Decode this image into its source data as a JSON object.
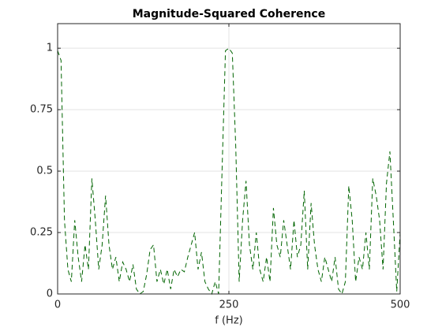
{
  "chart_data": {
    "type": "line",
    "title": "Magnitude-Squared Coherence",
    "x_label": "f (Hz)",
    "x": [
      0,
      5,
      10,
      15,
      20,
      25,
      30,
      35,
      40,
      45,
      50,
      55,
      60,
      65,
      70,
      75,
      80,
      85,
      90,
      95,
      100,
      105,
      110,
      115,
      120,
      125,
      130,
      135,
      140,
      145,
      150,
      155,
      160,
      165,
      170,
      175,
      180,
      185,
      190,
      195,
      200,
      205,
      210,
      215,
      220,
      225,
      230,
      235,
      240,
      245,
      250,
      255,
      260,
      265,
      270,
      275,
      280,
      285,
      290,
      295,
      300,
      305,
      310,
      315,
      320,
      325,
      330,
      335,
      340,
      345,
      350,
      355,
      360,
      365,
      370,
      375,
      380,
      385,
      390,
      395,
      400,
      405,
      410,
      415,
      420,
      425,
      430,
      435,
      440,
      445,
      450,
      455,
      460,
      465,
      470,
      475,
      480,
      485,
      490,
      495,
      500
    ],
    "series": [
      {
        "color": "#006400",
        "values": [
          0.99,
          0.95,
          0.3,
          0.1,
          0.05,
          0.3,
          0.15,
          0.05,
          0.2,
          0.1,
          0.47,
          0.3,
          0.1,
          0.2,
          0.4,
          0.2,
          0.1,
          0.15,
          0.05,
          0.13,
          0.1,
          0.05,
          0.12,
          0.02,
          0,
          0.01,
          0.08,
          0.18,
          0.2,
          0.05,
          0.1,
          0.04,
          0.1,
          0.02,
          0.1,
          0.07,
          0.1,
          0.09,
          0.15,
          0.2,
          0.25,
          0.1,
          0.17,
          0.05,
          0.02,
          0,
          0.05,
          0,
          0.5,
          0.99,
          1,
          0.98,
          0.6,
          0.05,
          0.3,
          0.46,
          0.2,
          0.1,
          0.25,
          0.1,
          0.05,
          0.15,
          0.05,
          0.35,
          0.2,
          0.15,
          0.3,
          0.2,
          0.1,
          0.3,
          0.15,
          0.2,
          0.42,
          0.1,
          0.37,
          0.2,
          0.1,
          0.05,
          0.15,
          0.1,
          0.05,
          0.15,
          0.02,
          0,
          0.05,
          0.44,
          0.3,
          0.05,
          0.15,
          0.1,
          0.25,
          0.1,
          0.47,
          0.4,
          0.3,
          0.1,
          0.45,
          0.58,
          0.3,
          0.01,
          0.25
        ]
      }
    ],
    "line_style": "dashed",
    "xlim": [
      0,
      500
    ],
    "xticks": [
      0,
      250,
      500
    ],
    "ylim": [
      0,
      1.1
    ],
    "yticks": [
      0,
      0.25,
      0.5,
      0.75,
      1
    ],
    "grid": true
  }
}
